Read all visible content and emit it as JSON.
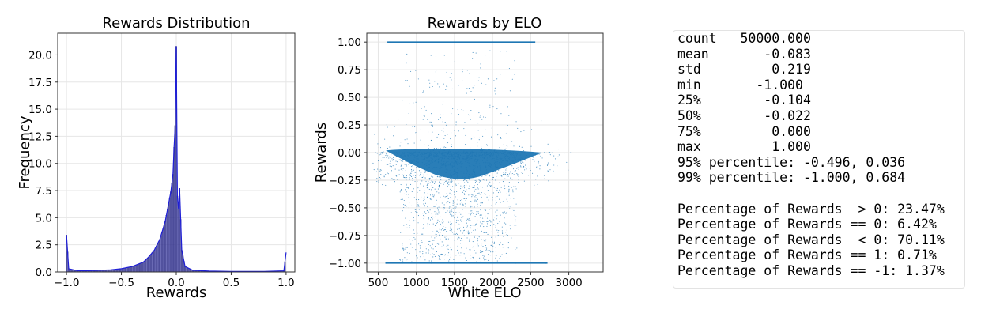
{
  "chart_data": [
    {
      "type": "histogram",
      "title": "Rewards Distribution",
      "xlabel": "Rewards",
      "ylabel": "Frequency",
      "xlim": [
        -1.08,
        1.08
      ],
      "ylim": [
        0,
        22
      ],
      "xticks": [
        -1.0,
        -0.5,
        0.0,
        0.5,
        1.0
      ],
      "xtick_labels": [
        "−1.0",
        "−0.5",
        "0.0",
        "0.5",
        "1.0"
      ],
      "yticks": [
        0.0,
        2.5,
        5.0,
        7.5,
        10.0,
        12.5,
        15.0,
        17.5,
        20.0
      ],
      "ytick_labels": [
        "0.0",
        "2.5",
        "5.0",
        "7.5",
        "10.0",
        "12.5",
        "15.0",
        "17.5",
        "20.0"
      ],
      "grid": true,
      "density": [
        {
          "x": -1.0,
          "y": 3.4
        },
        {
          "x": -0.98,
          "y": 0.3
        },
        {
          "x": -0.9,
          "y": 0.12
        },
        {
          "x": -0.8,
          "y": 0.12
        },
        {
          "x": -0.7,
          "y": 0.15
        },
        {
          "x": -0.6,
          "y": 0.2
        },
        {
          "x": -0.5,
          "y": 0.3
        },
        {
          "x": -0.4,
          "y": 0.5
        },
        {
          "x": -0.3,
          "y": 0.9
        },
        {
          "x": -0.25,
          "y": 1.4
        },
        {
          "x": -0.2,
          "y": 2.0
        },
        {
          "x": -0.15,
          "y": 3.0
        },
        {
          "x": -0.1,
          "y": 4.7
        },
        {
          "x": -0.07,
          "y": 6.3
        },
        {
          "x": -0.05,
          "y": 7.4
        },
        {
          "x": -0.03,
          "y": 9.0
        },
        {
          "x": -0.02,
          "y": 11.5
        },
        {
          "x": -0.01,
          "y": 13.5
        },
        {
          "x": 0.0,
          "y": 20.8
        },
        {
          "x": 0.01,
          "y": 7.0
        },
        {
          "x": 0.02,
          "y": 5.8
        },
        {
          "x": 0.03,
          "y": 7.7
        },
        {
          "x": 0.05,
          "y": 2.0
        },
        {
          "x": 0.08,
          "y": 0.5
        },
        {
          "x": 0.15,
          "y": 0.15
        },
        {
          "x": 0.3,
          "y": 0.08
        },
        {
          "x": 0.5,
          "y": 0.05
        },
        {
          "x": 0.8,
          "y": 0.05
        },
        {
          "x": 0.98,
          "y": 0.1
        },
        {
          "x": 1.0,
          "y": 1.8
        }
      ],
      "bar_color": "#3b3b9e",
      "line_color": "#1f1fd6"
    },
    {
      "type": "scatter",
      "title": "Rewards by ELO",
      "xlabel": "White ELO",
      "ylabel": "Rewards",
      "xlim": [
        350,
        3450
      ],
      "ylim": [
        -1.08,
        1.08
      ],
      "xticks": [
        500,
        1000,
        1500,
        2000,
        2500,
        3000
      ],
      "xtick_labels": [
        "500",
        "1000",
        "1500",
        "2000",
        "2500",
        "3000"
      ],
      "yticks": [
        -1.0,
        -0.75,
        -0.5,
        -0.25,
        0.0,
        0.25,
        0.5,
        0.75,
        1.0
      ],
      "ytick_labels": [
        "−1.00",
        "−0.75",
        "−0.50",
        "−0.25",
        "0.00",
        "0.25",
        "0.50",
        "0.75",
        "1.00"
      ],
      "grid": true,
      "point_color": "#1f77b4",
      "points": [
        {
          "elo": 650,
          "reward": 1.0
        },
        {
          "elo": 1100,
          "reward": 1.0
        },
        {
          "elo": 1500,
          "reward": 1.0
        },
        {
          "elo": 2000,
          "reward": 1.0
        },
        {
          "elo": 2550,
          "reward": 1.0
        },
        {
          "elo": 600,
          "reward": -1.0
        },
        {
          "elo": 1200,
          "reward": -1.0
        },
        {
          "elo": 1700,
          "reward": -1.0
        },
        {
          "elo": 2300,
          "reward": -1.0
        },
        {
          "elo": 2700,
          "reward": -1.0
        },
        {
          "elo": 1450,
          "reward": 0.0
        },
        {
          "elo": 1600,
          "reward": -0.1
        },
        {
          "elo": 1300,
          "reward": -0.3
        },
        {
          "elo": 1750,
          "reward": -0.55
        },
        {
          "elo": 1150,
          "reward": 0.3
        },
        {
          "elo": 2750,
          "reward": 0.0
        },
        {
          "elo": 550,
          "reward": 0.0
        },
        {
          "elo": 1900,
          "reward": -0.8
        },
        {
          "elo": 1400,
          "reward": 0.6
        },
        {
          "elo": 2200,
          "reward": -0.2
        }
      ]
    }
  ],
  "stats_text": {
    "lines": [
      "count   50000.000",
      "mean       -0.083",
      "std         0.219",
      "min       -1.000",
      "25%        -0.104",
      "50%        -0.022",
      "75%         0.000",
      "max         1.000",
      "95% percentile: -0.496, 0.036",
      "99% percentile: -1.000, 0.684",
      "",
      "Percentage of Rewards  > 0: 23.47%",
      "Percentage of Rewards == 0: 6.42%",
      "Percentage of Rewards  < 0: 70.11%",
      "Percentage of Rewards == 1: 0.71%",
      "Percentage of Rewards == -1: 1.37%"
    ]
  }
}
